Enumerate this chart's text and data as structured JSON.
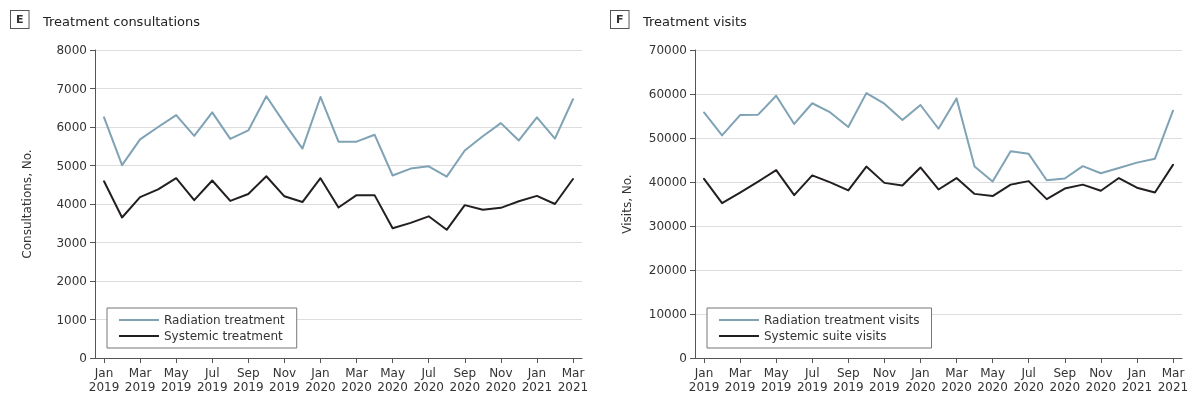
{
  "chart_data": [
    {
      "type": "line",
      "title": "Treatment consultations",
      "annotations": [
        "E"
      ],
      "ylabel": "Consultations, No.",
      "categories": [
        "Jan 2019",
        null,
        "Mar 2019",
        null,
        "May 2019",
        null,
        "Jul 2019",
        null,
        "Sep 2019",
        null,
        "Nov 2019",
        null,
        "Jan 2020",
        null,
        "Mar 2020",
        null,
        "May 2020",
        null,
        "Jul 2020",
        null,
        "Sep 2020",
        null,
        "Nov 2020",
        null,
        "Jan 2021",
        null,
        "Mar 2021"
      ],
      "series": [
        {
          "name": "Radiation treatment",
          "color": "#7fa3b5",
          "values": [
            6250,
            5010,
            5680,
            6000,
            6310,
            5770,
            6380,
            5690,
            5910,
            6800,
            6100,
            5440,
            6780,
            5620,
            5620,
            5800,
            4740,
            4920,
            4980,
            4710,
            5390,
            5760,
            6100,
            5650,
            6250,
            5700,
            6720
          ]
        },
        {
          "name": "Systemic treatment",
          "color": "#231f20",
          "values": [
            4590,
            3650,
            4180,
            4380,
            4670,
            4100,
            4610,
            4080,
            4260,
            4720,
            4200,
            4050,
            4670,
            3910,
            4230,
            4230,
            3370,
            3510,
            3680,
            3330,
            3970,
            3850,
            3900,
            4070,
            4210,
            4000,
            4650
          ]
        }
      ],
      "ylim": [
        0,
        8000
      ],
      "yticks": [
        0,
        1000,
        2000,
        3000,
        4000,
        5000,
        6000,
        7000,
        8000
      ],
      "grid": "y",
      "legend": "bottom left",
      "marker": "none",
      "line_style": "solid"
    },
    {
      "type": "line",
      "title": "Treatment visits",
      "annotations": [
        "F"
      ],
      "ylabel": "Visits, No.",
      "categories": [
        "Jan 2019",
        null,
        "Mar 2019",
        null,
        "May 2019",
        null,
        "Jul 2019",
        null,
        "Sep 2019",
        null,
        "Nov 2019",
        null,
        "Jan 2020",
        null,
        "Mar 2020",
        null,
        "May 2020",
        null,
        "Jul 2020",
        null,
        "Sep 2020",
        null,
        "Nov 2020",
        null,
        "Jan 2021",
        null,
        "Mar 2021"
      ],
      "series": [
        {
          "name": "Radiation treatment visits",
          "color": "#7fa3b5",
          "values": [
            55800,
            50600,
            55200,
            55300,
            59600,
            53200,
            57900,
            55800,
            52500,
            60200,
            57800,
            54100,
            57500,
            52100,
            59000,
            43500,
            40100,
            47000,
            46400,
            40400,
            40800,
            43600,
            42000,
            43200,
            44400,
            45300,
            56200
          ]
        },
        {
          "name": "Systemic suite visits",
          "color": "#231f20",
          "values": [
            40700,
            35200,
            37600,
            40100,
            42700,
            37000,
            41500,
            39900,
            38100,
            43500,
            39800,
            39200,
            43300,
            38300,
            40900,
            37300,
            36800,
            39400,
            40200,
            36100,
            38500,
            39400,
            38000,
            40900,
            38700,
            37600,
            43900
          ]
        }
      ],
      "ylim": [
        0,
        70000
      ],
      "yticks": [
        0,
        10000,
        20000,
        30000,
        40000,
        50000,
        60000,
        70000
      ],
      "grid": "y",
      "legend": "bottom left",
      "marker": "none",
      "line_style": "solid"
    }
  ]
}
